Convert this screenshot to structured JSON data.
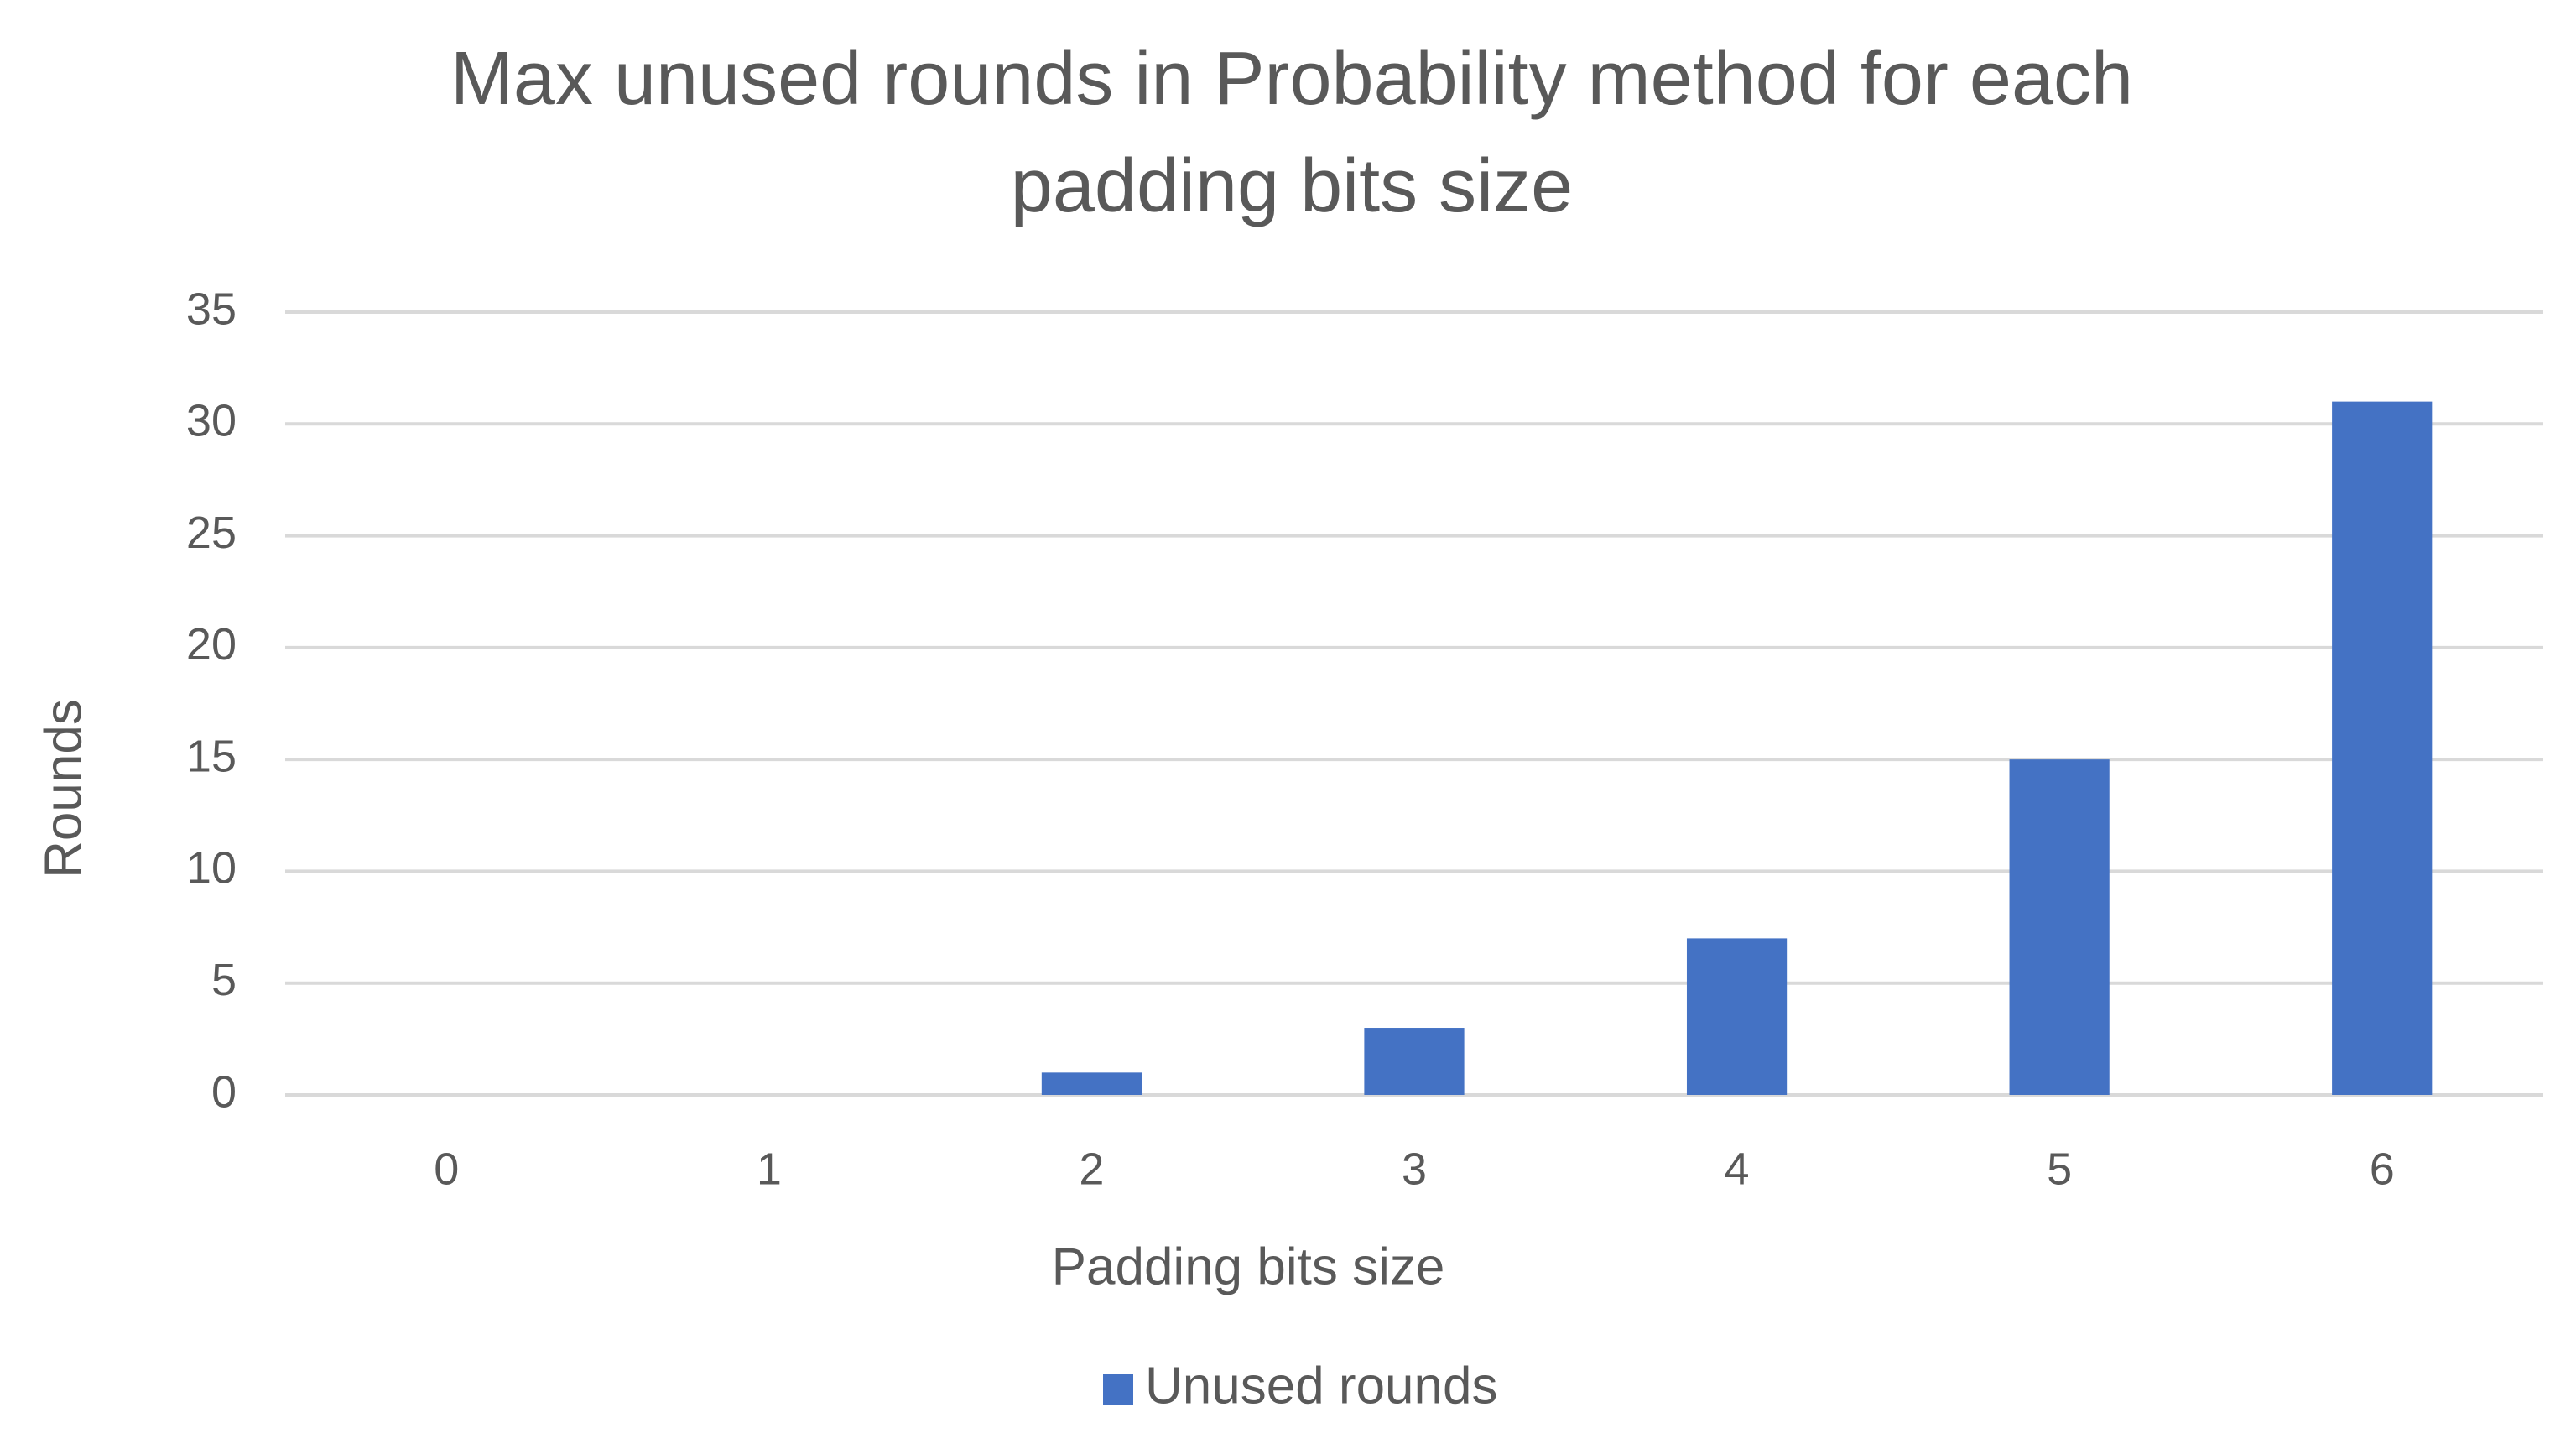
{
  "chart_data": {
    "type": "bar",
    "title": "Max unused rounds in Probability method for each padding bits size",
    "x_label": "Padding bits size",
    "y_label": "Rounds",
    "categories": [
      "0",
      "1",
      "2",
      "3",
      "4",
      "5",
      "6"
    ],
    "series": [
      {
        "name": "Unused rounds",
        "color": "#4472c4",
        "values": [
          0,
          0,
          1,
          3,
          7,
          15,
          31
        ]
      }
    ],
    "ylim": [
      0,
      35
    ],
    "yticks": [
      0,
      5,
      10,
      15,
      20,
      25,
      30,
      35
    ],
    "grid": true,
    "legend": "bottom"
  }
}
